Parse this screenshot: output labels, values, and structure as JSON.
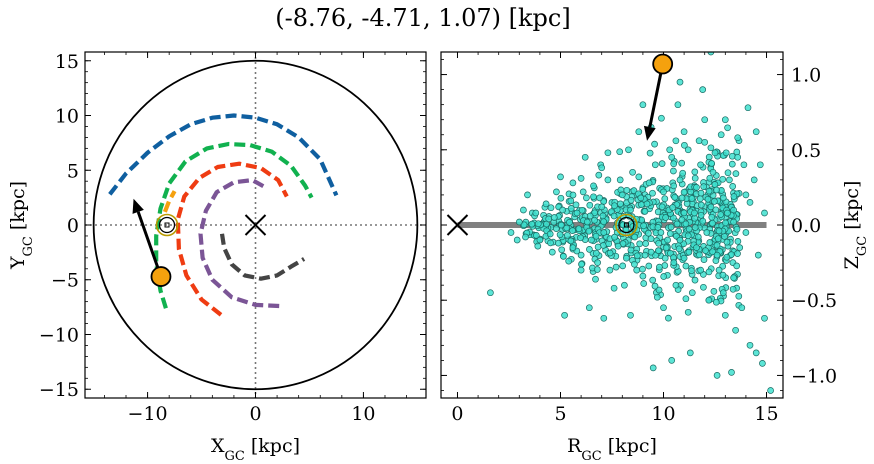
{
  "title": "(-8.76, -4.71, 1.07) [kpc]",
  "chart_data": [
    {
      "type": "line",
      "name": "face-on",
      "xlabel": "X",
      "xlabel_sub": "GC",
      "xlabel_unit": " [kpc]",
      "ylabel": "Y",
      "ylabel_sub": "GC",
      "ylabel_unit": " [kpc]",
      "xlim": [
        -15.8,
        15.8
      ],
      "ylim": [
        -15.8,
        15.8
      ],
      "xticks": [
        -10,
        0,
        10
      ],
      "yticks": [
        -15,
        -10,
        -5,
        0,
        5,
        10,
        15
      ],
      "tick_labels_x": [
        "−10",
        "0",
        "10"
      ],
      "tick_labels_y": [
        "−15",
        "−10",
        "−5",
        "0",
        "5",
        "10",
        "15"
      ],
      "boundary_radius": 15,
      "guide_lines": {
        "x": 0,
        "y": 0,
        "style": "dotted",
        "color": "#777777"
      },
      "center_marker": {
        "x": 0,
        "y": 0,
        "symbol": "x"
      },
      "sun": {
        "x": -8.2,
        "y": 0
      },
      "object": {
        "x": -8.76,
        "y": -4.71,
        "color": "#f5a10e"
      },
      "arrow": {
        "from": [
          -8.76,
          -4.71
        ],
        "to": [
          -11.3,
          2.4
        ]
      },
      "arms": [
        {
          "color": "#0f5fa0",
          "points": [
            [
              -13.5,
              2.8
            ],
            [
              -12,
              4.7
            ],
            [
              -10,
              6.6
            ],
            [
              -8,
              8.1
            ],
            [
              -6,
              9.2
            ],
            [
              -4,
              9.8
            ],
            [
              -2,
              10
            ],
            [
              0,
              9.8
            ],
            [
              2,
              9.2
            ],
            [
              4,
              8
            ],
            [
              6,
              6
            ],
            [
              7.5,
              2.7
            ]
          ]
        },
        {
          "color": "#11b14f",
          "points": [
            [
              -8.3,
              -7.6
            ],
            [
              -8.8,
              -6
            ],
            [
              -9.2,
              -3.5
            ],
            [
              -9.2,
              -1
            ],
            [
              -8.8,
              1.5
            ],
            [
              -8,
              3.8
            ],
            [
              -6.5,
              5.8
            ],
            [
              -4.5,
              7
            ],
            [
              -2.5,
              7.4
            ],
            [
              -0.5,
              7.3
            ],
            [
              1.5,
              6.7
            ],
            [
              3.3,
              5.4
            ],
            [
              4.6,
              3.6
            ],
            [
              5.2,
              2.5
            ]
          ]
        },
        {
          "color": "#f5a10e",
          "points": [
            [
              -8.4,
              1.2
            ],
            [
              -8,
              2.2
            ],
            [
              -7.5,
              3.1
            ]
          ]
        },
        {
          "color": "#ef3c12",
          "points": [
            [
              -3.2,
              -8.2
            ],
            [
              -5,
              -6.8
            ],
            [
              -6.4,
              -4.6
            ],
            [
              -7.1,
              -2.2
            ],
            [
              -7.2,
              0.5
            ],
            [
              -6.6,
              2.6
            ],
            [
              -5.2,
              4.3
            ],
            [
              -3.5,
              5.3
            ],
            [
              -1.5,
              5.6
            ],
            [
              0.5,
              5.2
            ],
            [
              2.1,
              4.1
            ],
            [
              2.9,
              2.6
            ]
          ]
        },
        {
          "color": "#7b5596",
          "points": [
            [
              2.2,
              -7.4
            ],
            [
              0,
              -7.3
            ],
            [
              -2.2,
              -6.6
            ],
            [
              -4,
              -5
            ],
            [
              -4.9,
              -3
            ],
            [
              -5.1,
              -0.8
            ],
            [
              -4.6,
              1.3
            ],
            [
              -3.6,
              3
            ],
            [
              -2,
              3.9
            ],
            [
              -0.3,
              4.1
            ],
            [
              1,
              3.4
            ]
          ]
        },
        {
          "color": "#444444",
          "points": [
            [
              -3.1,
              -0.8
            ],
            [
              -2.9,
              -2.1
            ],
            [
              -2.2,
              -3.6
            ],
            [
              -1,
              -4.6
            ],
            [
              0.5,
              -4.9
            ],
            [
              2,
              -4.6
            ],
            [
              3.3,
              -3.8
            ],
            [
              4.5,
              -3.1
            ]
          ]
        }
      ]
    },
    {
      "type": "scatter",
      "name": "edge-on",
      "xlabel": "R",
      "xlabel_sub": "GC",
      "xlabel_unit": " [kpc]",
      "ylabel": "Z",
      "ylabel_sub": "GC",
      "ylabel_unit": " [kpc]",
      "xlim": [
        -0.8,
        15.8
      ],
      "ylim": [
        -1.15,
        1.15
      ],
      "xticks": [
        0,
        5,
        10,
        15
      ],
      "yticks": [
        -1.0,
        -0.5,
        0.0,
        0.5,
        1.0
      ],
      "tick_labels_x": [
        "0",
        "5",
        "10",
        "15"
      ],
      "tick_labels_y": [
        "−1.0",
        "−0.5",
        "0.0",
        "0.5",
        "1.0"
      ],
      "ylabel_side": "right",
      "disk_line": {
        "x": [
          0,
          15
        ],
        "y": 0,
        "color": "#808080"
      },
      "center_marker": {
        "x": 0,
        "y": 0,
        "symbol": "x"
      },
      "sun": {
        "x": 8.2,
        "y": 0
      },
      "object": {
        "x": 9.96,
        "y": 1.07,
        "color": "#f5a10e"
      },
      "arrow": {
        "from": [
          9.96,
          1.07
        ],
        "to": [
          9.2,
          0.56
        ]
      },
      "scatter_style": {
        "fill": "#3fe0cf",
        "stroke": "#1a6b63"
      },
      "scatter_points": [
        [
          1.6,
          -0.45
        ],
        [
          2.6,
          -0.05
        ],
        [
          3.0,
          0.02
        ],
        [
          3.3,
          -0.08
        ],
        [
          3.4,
          0.2
        ],
        [
          3.8,
          0.08
        ],
        [
          4.0,
          -0.1
        ],
        [
          4.3,
          0.14
        ],
        [
          4.5,
          -0.06
        ],
        [
          4.7,
          0.05
        ],
        [
          4.9,
          -0.12
        ],
        [
          5.1,
          0.1
        ],
        [
          5.3,
          -0.02
        ],
        [
          5.5,
          0.16
        ],
        [
          5.6,
          -0.15
        ],
        [
          5.8,
          0.08
        ],
        [
          6.0,
          -0.2
        ],
        [
          6.1,
          0.22
        ],
        [
          6.3,
          0.02
        ],
        [
          6.5,
          -0.1
        ],
        [
          6.6,
          0.26
        ],
        [
          6.8,
          -0.25
        ],
        [
          7.0,
          0.12
        ],
        [
          7.1,
          -0.05
        ],
        [
          7.3,
          0.3
        ],
        [
          7.4,
          -0.3
        ],
        [
          7.6,
          0.06
        ],
        [
          7.8,
          -0.14
        ],
        [
          8.0,
          0.2
        ],
        [
          8.2,
          -0.22
        ],
        [
          8.4,
          0.1
        ],
        [
          8.6,
          -0.08
        ],
        [
          8.8,
          0.32
        ],
        [
          9.0,
          -0.34
        ],
        [
          9.2,
          0.14
        ],
        [
          9.4,
          -0.18
        ],
        [
          9.6,
          0.4
        ],
        [
          9.8,
          -0.28
        ],
        [
          10.0,
          0.22
        ],
        [
          10.2,
          -0.1
        ],
        [
          10.4,
          0.45
        ],
        [
          10.6,
          -0.4
        ],
        [
          10.8,
          0.3
        ],
        [
          11.0,
          -0.22
        ],
        [
          11.2,
          0.5
        ],
        [
          11.4,
          -0.45
        ],
        [
          11.6,
          0.25
        ],
        [
          11.8,
          -0.3
        ],
        [
          12.0,
          0.55
        ],
        [
          12.2,
          -0.5
        ],
        [
          12.4,
          0.35
        ],
        [
          12.6,
          -0.2
        ],
        [
          12.8,
          0.6
        ],
        [
          13.0,
          -0.6
        ],
        [
          13.2,
          0.3
        ],
        [
          13.4,
          -0.35
        ],
        [
          13.6,
          0.45
        ],
        [
          13.8,
          -0.55
        ],
        [
          14.0,
          0.2
        ],
        [
          14.2,
          -0.8
        ],
        [
          14.5,
          -0.85
        ],
        [
          14.8,
          -0.92
        ],
        [
          15.2,
          -1.1
        ],
        [
          14.9,
          0.08
        ],
        [
          13.3,
          -0.98
        ],
        [
          12.6,
          -1.0
        ],
        [
          11.3,
          -0.85
        ],
        [
          10.4,
          -0.9
        ],
        [
          9.5,
          -0.95
        ],
        [
          8.4,
          -0.6
        ],
        [
          7.1,
          -0.62
        ],
        [
          6.4,
          -0.55
        ],
        [
          5.2,
          -0.6
        ],
        [
          8.1,
          -0.4
        ],
        [
          7.6,
          -0.42
        ],
        [
          9.0,
          0.8
        ],
        [
          8.8,
          0.62
        ],
        [
          9.4,
          0.65
        ],
        [
          10.7,
          0.8
        ],
        [
          10.6,
          0.56
        ],
        [
          13.0,
          0.7
        ],
        [
          14.1,
          0.78
        ],
        [
          12.5,
          0.48
        ],
        [
          11.0,
          0.62
        ],
        [
          13.6,
          0.58
        ],
        [
          6.2,
          0.45
        ],
        [
          7.3,
          0.48
        ],
        [
          8.3,
          0.5
        ],
        [
          9.9,
          0.71
        ],
        [
          12.0,
          0.7
        ],
        [
          11.8,
          0.4
        ],
        [
          10.3,
          0.5
        ],
        [
          13.9,
          0.4
        ],
        [
          14.5,
          0.62
        ],
        [
          11.2,
          -0.58
        ],
        [
          12.9,
          -0.45
        ],
        [
          10.0,
          -0.55
        ],
        [
          9.7,
          -0.48
        ],
        [
          13.5,
          -0.7
        ],
        [
          14.9,
          -0.62
        ],
        [
          8.5,
          0.35
        ],
        [
          7.9,
          0.3
        ],
        [
          7.0,
          0.38
        ],
        [
          6.0,
          0.31
        ],
        [
          5.6,
          0.28
        ],
        [
          4.8,
          0.22
        ],
        [
          9.3,
          0.28
        ],
        [
          10.9,
          0.18
        ],
        [
          12.3,
          0.12
        ],
        [
          13.1,
          0.08
        ],
        [
          14.2,
          0.15
        ],
        [
          14.6,
          -0.2
        ],
        [
          13.7,
          -0.15
        ],
        [
          12.7,
          -0.3
        ],
        [
          11.6,
          -0.15
        ],
        [
          10.5,
          -0.25
        ],
        [
          9.1,
          -0.2
        ],
        [
          8.7,
          -0.3
        ],
        [
          7.7,
          -0.28
        ],
        [
          6.7,
          -0.36
        ],
        [
          6.0,
          -0.3
        ],
        [
          5.4,
          -0.24
        ],
        [
          4.6,
          -0.18
        ],
        [
          3.9,
          -0.14
        ],
        [
          3.2,
          0.1
        ],
        [
          2.9,
          -0.1
        ],
        [
          5.0,
          0.32
        ],
        [
          6.9,
          0.18
        ],
        [
          8.9,
          0.18
        ],
        [
          10.1,
          0.05
        ],
        [
          11.5,
          0.08
        ],
        [
          12.1,
          -0.05
        ],
        [
          12.9,
          0.18
        ],
        [
          13.4,
          0.02
        ],
        [
          14.0,
          -0.05
        ],
        [
          14.4,
          0.3
        ],
        [
          14.7,
          0.4
        ],
        [
          11.9,
          0.9
        ],
        [
          12.3,
          1.15
        ],
        [
          10.8,
          0.95
        ]
      ]
    }
  ]
}
